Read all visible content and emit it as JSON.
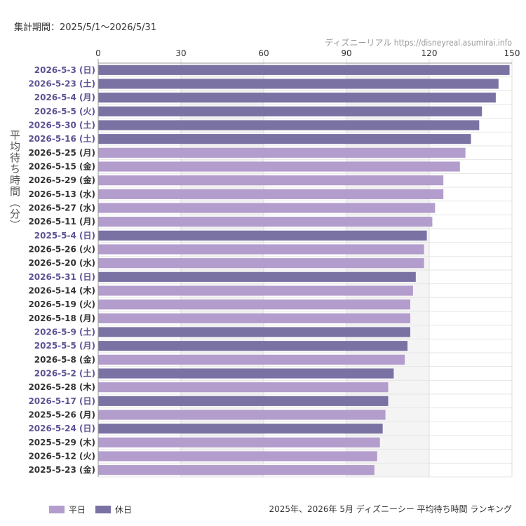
{
  "header": {
    "period": "集計期間：2025/5/1〜2026/5/31",
    "credit": "ディズニーリアル https://disneyreal.asumirai.info"
  },
  "footer": {
    "caption": "2025年、2026年 5月 ディズニーシー 平均待ち時間 ランキング"
  },
  "legend": {
    "weekday": "平日",
    "holiday": "休日"
  },
  "colors": {
    "weekday": "#b39dcc",
    "holiday": "#7a72a3",
    "label_weekday": "#333333",
    "label_holiday": "#5c5493"
  },
  "chart_data": {
    "type": "bar",
    "orientation": "horizontal",
    "ylabel": "平均待ち時間（分）",
    "xlim": [
      0,
      150
    ],
    "xticks": [
      0,
      30,
      60,
      90,
      120,
      150
    ],
    "grid": true,
    "legend_position": "bottom-left",
    "categories": [
      "2026-5-3 (日)",
      "2026-5-23 (土)",
      "2026-5-4 (月)",
      "2026-5-5 (火)",
      "2026-5-30 (土)",
      "2026-5-16 (土)",
      "2026-5-25 (月)",
      "2026-5-15 (金)",
      "2026-5-29 (金)",
      "2026-5-13 (水)",
      "2026-5-27 (水)",
      "2026-5-11 (月)",
      "2025-5-4 (日)",
      "2026-5-26 (火)",
      "2026-5-20 (水)",
      "2026-5-31 (日)",
      "2026-5-14 (木)",
      "2026-5-19 (火)",
      "2026-5-18 (月)",
      "2026-5-9 (土)",
      "2025-5-5 (月)",
      "2026-5-8 (金)",
      "2026-5-2 (土)",
      "2026-5-28 (木)",
      "2026-5-17 (日)",
      "2025-5-26 (月)",
      "2026-5-24 (日)",
      "2025-5-29 (木)",
      "2026-5-12 (火)",
      "2025-5-23 (金)"
    ],
    "values": [
      149,
      145,
      144,
      139,
      138,
      135,
      133,
      131,
      125,
      125,
      122,
      121,
      119,
      118,
      118,
      115,
      114,
      113,
      113,
      113,
      112,
      111,
      107,
      105,
      105,
      104,
      103,
      102,
      101,
      100
    ],
    "day_type": [
      "holiday",
      "holiday",
      "holiday",
      "holiday",
      "holiday",
      "holiday",
      "weekday",
      "weekday",
      "weekday",
      "weekday",
      "weekday",
      "weekday",
      "holiday",
      "weekday",
      "weekday",
      "holiday",
      "weekday",
      "weekday",
      "weekday",
      "holiday",
      "holiday",
      "weekday",
      "holiday",
      "weekday",
      "holiday",
      "weekday",
      "holiday",
      "weekday",
      "weekday",
      "weekday"
    ]
  }
}
